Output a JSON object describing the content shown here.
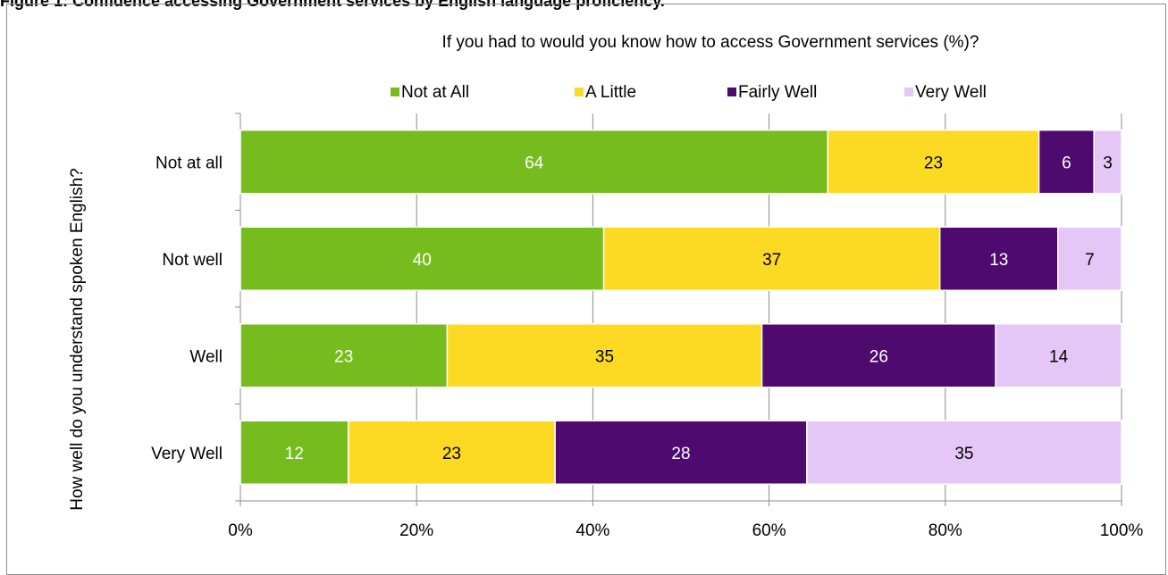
{
  "figure_title": "Figure 1: Confidence accessing Government services by English language proficiency.",
  "chart_data": {
    "type": "bar",
    "orientation": "horizontal",
    "stacked": "percent",
    "title": "If you had to would you know how to access Government services (%)?",
    "ylabel": "How well do you understand spoken English?",
    "xlabel": "",
    "categories": [
      "Not at all",
      "Not well",
      "Well",
      "Very Well"
    ],
    "series": [
      {
        "name": "Not at All",
        "color": "#77bc1f",
        "label_color": "#ffffff",
        "values": [
          64,
          40,
          23,
          12
        ]
      },
      {
        "name": "A Little",
        "color": "#fcd923",
        "label_color": "#000000",
        "values": [
          23,
          37,
          35,
          23
        ]
      },
      {
        "name": "Fairly Well",
        "color": "#4f0a70",
        "label_color": "#ffffff",
        "values": [
          6,
          13,
          26,
          28
        ]
      },
      {
        "name": "Very Well",
        "color": "#e4c7f7",
        "label_color": "#000000",
        "values": [
          3,
          7,
          14,
          35
        ]
      }
    ],
    "xlim": [
      0,
      100
    ],
    "xticks": [
      "0%",
      "20%",
      "40%",
      "60%",
      "80%",
      "100%"
    ],
    "grid": true,
    "legend": "top"
  }
}
